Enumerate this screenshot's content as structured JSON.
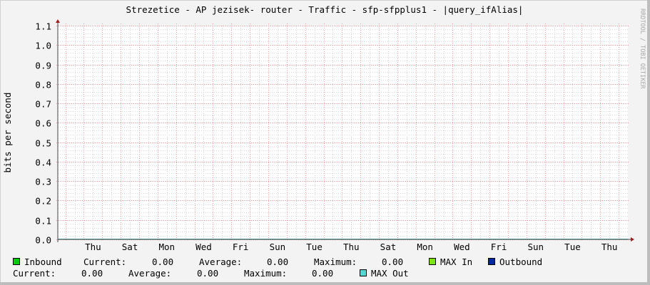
{
  "chart_data": {
    "type": "line",
    "title": "Strezetice - AP jezisek- router - Traffic - sfp-sfpplus1 - |query_ifAlias|",
    "ylabel": "bits per second",
    "xlabel": "",
    "ylim": [
      0,
      1.1
    ],
    "yticks": [
      "0.0",
      "0.1",
      "0.2",
      "0.3",
      "0.4",
      "0.5",
      "0.6",
      "0.7",
      "0.8",
      "0.9",
      "1.0",
      "1.1"
    ],
    "xticks": [
      "Thu",
      "Sat",
      "Mon",
      "Wed",
      "Fri",
      "Sun",
      "Tue",
      "Thu",
      "Sat",
      "Mon",
      "Wed",
      "Fri",
      "Sun",
      "Tue",
      "Thu"
    ],
    "grid": true,
    "series": [
      {
        "name": "Inbound",
        "values": [
          0,
          0
        ],
        "color": "#00cc00"
      },
      {
        "name": "MAX In",
        "values": [
          0,
          0
        ],
        "color": "#7ae60a"
      },
      {
        "name": "Outbound",
        "values": [
          0,
          0
        ],
        "color": "#002a97"
      },
      {
        "name": "MAX Out",
        "values": [
          0,
          0
        ],
        "color": "#55d6d3"
      }
    ]
  },
  "legend": {
    "inbound": {
      "label": "Inbound",
      "current_label": "Current:",
      "current": "0.00",
      "average_label": "Average:",
      "average": "0.00",
      "maximum_label": "Maximum:",
      "maximum": "0.00"
    },
    "max_in": {
      "label": "MAX In"
    },
    "outbound": {
      "label": "Outbound",
      "current_label": "Current:",
      "current": "0.00",
      "average_label": "Average:",
      "average": "0.00",
      "maximum_label": "Maximum:",
      "maximum": "0.00"
    },
    "max_out": {
      "label": "MAX Out"
    }
  },
  "watermark": "RRDTOOL / TOBI OETIKER"
}
